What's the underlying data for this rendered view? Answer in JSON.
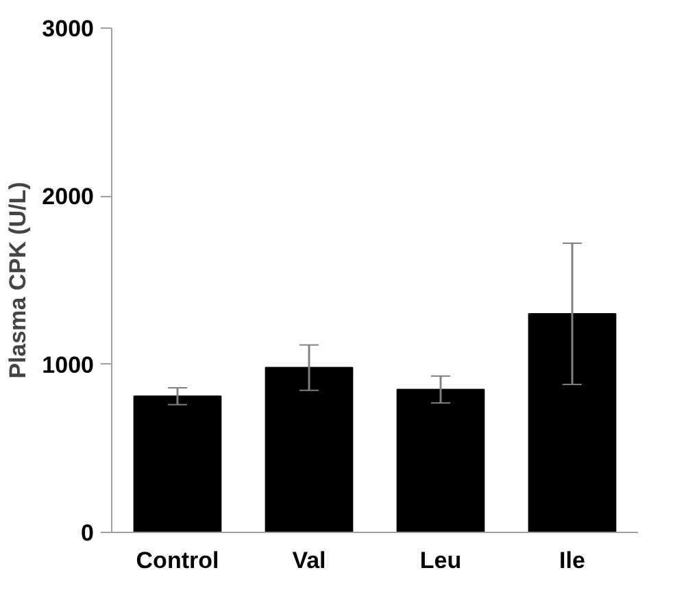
{
  "chart_data": {
    "type": "bar",
    "ylabel": "Plasma CPK (U/L)",
    "categories": [
      "Control",
      "Val",
      "Leu",
      "Ile"
    ],
    "values": [
      810,
      980,
      850,
      1300
    ],
    "errors": [
      50,
      135,
      80,
      420
    ],
    "color": "#000000",
    "ylim": [
      0,
      3000
    ],
    "yticks": [
      0,
      1000,
      2000,
      3000
    ],
    "grid": false
  }
}
